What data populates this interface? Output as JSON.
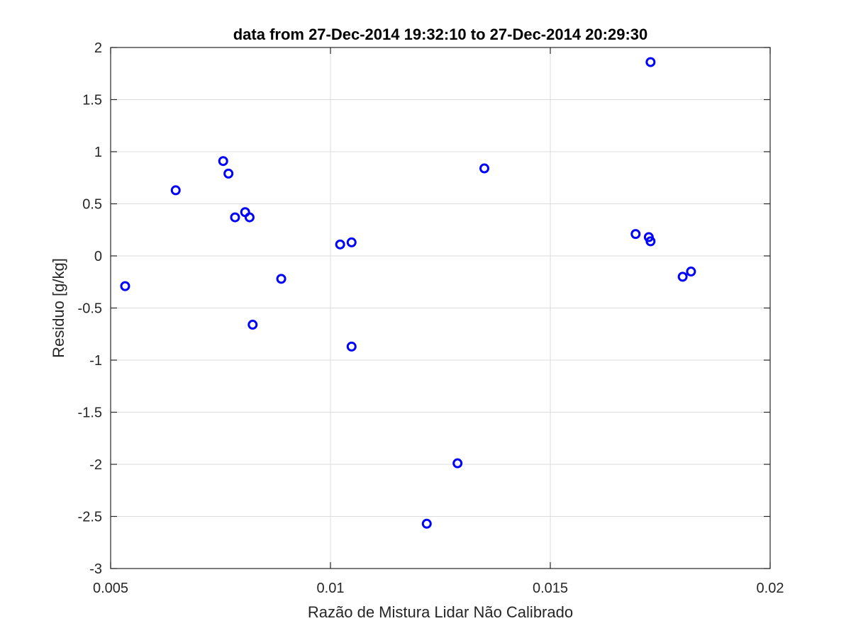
{
  "chart_data": {
    "type": "scatter",
    "title": "data from 27-Dec-2014 19:32:10 to 27-Dec-2014 20:29:30",
    "xlabel": "Razão de Mistura Lidar Não Calibrado",
    "ylabel": "Residuo [g/kg]",
    "xlim": [
      0.005,
      0.02
    ],
    "ylim": [
      -3,
      2
    ],
    "xticks": [
      0.005,
      0.01,
      0.015,
      0.02
    ],
    "xtick_labels": [
      "0.005",
      "0.01",
      "0.015",
      "0.02"
    ],
    "yticks": [
      -3,
      -2.5,
      -2,
      -1.5,
      -1,
      -0.5,
      0,
      0.5,
      1,
      1.5,
      2
    ],
    "ytick_labels": [
      "-3",
      "-2.5",
      "-2",
      "-1.5",
      "-1",
      "-0.5",
      "0",
      "0.5",
      "1",
      "1.5",
      "2"
    ],
    "grid": true,
    "marker_color": "#0000ff",
    "points": [
      {
        "x": 0.00533,
        "y": -0.29
      },
      {
        "x": 0.00648,
        "y": 0.63
      },
      {
        "x": 0.00756,
        "y": 0.91
      },
      {
        "x": 0.00768,
        "y": 0.79
      },
      {
        "x": 0.00783,
        "y": 0.37
      },
      {
        "x": 0.00806,
        "y": 0.42
      },
      {
        "x": 0.00816,
        "y": 0.37
      },
      {
        "x": 0.00823,
        "y": -0.66
      },
      {
        "x": 0.00888,
        "y": -0.22
      },
      {
        "x": 0.01022,
        "y": 0.11
      },
      {
        "x": 0.01048,
        "y": 0.13
      },
      {
        "x": 0.01048,
        "y": -0.87
      },
      {
        "x": 0.01219,
        "y": -2.57
      },
      {
        "x": 0.01289,
        "y": -1.99
      },
      {
        "x": 0.0135,
        "y": 0.84
      },
      {
        "x": 0.01694,
        "y": 0.21
      },
      {
        "x": 0.01724,
        "y": 0.18
      },
      {
        "x": 0.01728,
        "y": 0.14
      },
      {
        "x": 0.01728,
        "y": 1.86
      },
      {
        "x": 0.01801,
        "y": -0.2
      },
      {
        "x": 0.0182,
        "y": -0.15
      }
    ]
  }
}
